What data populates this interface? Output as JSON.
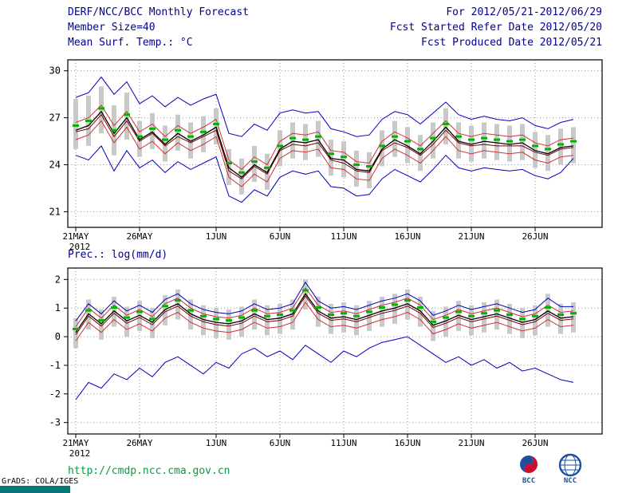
{
  "header": {
    "title": "DERF/NCC/BCC Monthly Forecast",
    "member_size": "Member Size=40",
    "for_range": "For 2012/05/21-2012/06/29",
    "refer_date": "Fcst Started Refer Date 2012/05/20",
    "produced_date": "Fcst Produced Date 2012/05/21"
  },
  "footer": {
    "url": "http://cmdp.ncc.cma.gov.cn",
    "grads_credit": "GrADS: COLA/IGES",
    "logos": [
      "BCC",
      "NCC"
    ]
  },
  "colors": {
    "header_text": "#00008b",
    "envelope_line": "#0000bb",
    "quartile_line": "#cc3333",
    "control_line": "#7a0000",
    "mean_line": "#000000",
    "median_marker": "#00b400",
    "spread_bar": "#c9c9c9",
    "url_text": "#00a040",
    "signature_bar": "#007a7a"
  },
  "chart_data": [
    {
      "type": "line",
      "title": "Mean Surf. Temp.: °C",
      "xlabel": "",
      "ylabel": "°C",
      "ylim": [
        20.0,
        30.7
      ],
      "yticks": [
        21,
        24,
        27,
        30
      ],
      "ytick_labels": [
        "21",
        "24",
        "27",
        "30"
      ],
      "x_days": 40,
      "xtick_labels": [
        "21MAY",
        "26MAY",
        "1JUN",
        "6JUN",
        "11JUN",
        "16JUN",
        "21JUN",
        "26JUN"
      ],
      "xtick_day_index": [
        0,
        5,
        11,
        16,
        21,
        26,
        31,
        36
      ],
      "year_label": "2012",
      "grid": true,
      "series": [
        {
          "name": "min",
          "color": "#0000bb",
          "width": 1,
          "values": [
            24.6,
            24.3,
            25.2,
            23.6,
            24.9,
            23.8,
            24.3,
            23.5,
            24.2,
            23.7,
            24.1,
            24.5,
            22.0,
            21.6,
            22.4,
            22.0,
            23.2,
            23.6,
            23.4,
            23.6,
            22.6,
            22.5,
            22.0,
            22.1,
            23.1,
            23.7,
            23.3,
            22.9,
            23.7,
            24.6,
            23.8,
            23.6,
            23.8,
            23.7,
            23.6,
            23.7,
            23.3,
            23.1,
            23.5,
            24.4
          ]
        },
        {
          "name": "max",
          "color": "#0000bb",
          "width": 1,
          "values": [
            28.3,
            28.6,
            29.6,
            28.5,
            29.3,
            27.9,
            28.4,
            27.7,
            28.3,
            27.8,
            28.2,
            28.5,
            26.0,
            25.8,
            26.6,
            26.2,
            27.3,
            27.5,
            27.3,
            27.4,
            26.3,
            26.1,
            25.8,
            25.9,
            26.9,
            27.4,
            27.2,
            26.6,
            27.3,
            28.0,
            27.2,
            26.9,
            27.1,
            26.9,
            26.8,
            27.0,
            26.5,
            26.3,
            26.7,
            26.9
          ]
        },
        {
          "name": "lower-quartile",
          "color": "#cc3333",
          "width": 1,
          "values": [
            25.6,
            25.9,
            26.8,
            25.4,
            26.4,
            25.0,
            25.5,
            24.7,
            25.4,
            24.9,
            25.3,
            25.8,
            23.2,
            22.6,
            23.4,
            22.9,
            24.4,
            24.9,
            24.8,
            25.0,
            23.8,
            23.7,
            23.1,
            23.0,
            24.4,
            25.0,
            24.6,
            24.1,
            24.9,
            25.8,
            24.9,
            24.7,
            24.9,
            24.8,
            24.7,
            24.8,
            24.3,
            24.1,
            24.5,
            24.6
          ]
        },
        {
          "name": "upper-quartile",
          "color": "#cc3333",
          "width": 1,
          "values": [
            26.7,
            27.0,
            27.8,
            26.5,
            27.4,
            26.1,
            26.6,
            25.8,
            26.5,
            26.0,
            26.4,
            26.9,
            24.3,
            23.7,
            24.5,
            24.0,
            25.5,
            26.0,
            25.9,
            26.1,
            24.9,
            24.8,
            24.2,
            24.1,
            25.5,
            26.1,
            25.7,
            25.2,
            26.0,
            26.8,
            26.0,
            25.8,
            26.0,
            25.9,
            25.8,
            25.9,
            25.4,
            25.2,
            25.6,
            25.7
          ]
        },
        {
          "name": "control",
          "color": "#7a0000",
          "width": 1,
          "values": [
            26.1,
            26.3,
            27.2,
            25.8,
            26.8,
            25.5,
            26.0,
            25.2,
            25.8,
            25.4,
            25.8,
            26.2,
            23.6,
            23.1,
            23.9,
            23.4,
            24.9,
            25.3,
            25.2,
            25.4,
            24.3,
            24.1,
            23.6,
            23.5,
            24.9,
            25.4,
            25.1,
            24.6,
            25.3,
            26.2,
            25.4,
            25.2,
            25.3,
            25.2,
            25.2,
            25.2,
            24.8,
            24.6,
            25.0,
            25.1
          ]
        },
        {
          "name": "ensemble-mean",
          "color": "#000000",
          "width": 1.3,
          "values": [
            26.2,
            26.5,
            27.4,
            26.0,
            27.0,
            25.6,
            26.1,
            25.3,
            26.0,
            25.5,
            25.9,
            26.4,
            23.8,
            23.2,
            24.0,
            23.5,
            25.0,
            25.5,
            25.4,
            25.6,
            24.4,
            24.3,
            23.7,
            23.6,
            25.0,
            25.6,
            25.2,
            24.7,
            25.5,
            26.4,
            25.5,
            25.3,
            25.5,
            25.4,
            25.3,
            25.4,
            24.9,
            24.7,
            25.1,
            25.2
          ]
        }
      ],
      "median_markers": {
        "color": "#00b400",
        "values": [
          26.5,
          26.8,
          27.6,
          26.2,
          27.2,
          25.8,
          26.3,
          25.6,
          26.2,
          25.8,
          26.1,
          26.6,
          24.1,
          23.5,
          24.2,
          23.8,
          25.2,
          25.7,
          25.6,
          25.8,
          24.7,
          24.5,
          24.0,
          23.9,
          25.2,
          25.8,
          25.5,
          25.0,
          25.7,
          26.6,
          25.8,
          25.6,
          25.7,
          25.6,
          25.5,
          25.6,
          25.2,
          25.0,
          25.3,
          25.5
        ]
      },
      "spread_bars": {
        "color": "#c9c9c9",
        "low": [
          25.0,
          25.2,
          26.0,
          24.6,
          25.6,
          24.5,
          25.0,
          24.2,
          24.9,
          24.4,
          24.8,
          25.3,
          22.7,
          22.1,
          22.9,
          22.4,
          23.9,
          24.4,
          24.3,
          24.5,
          23.3,
          23.2,
          22.6,
          22.5,
          23.9,
          24.5,
          24.1,
          23.6,
          24.4,
          25.3,
          24.4,
          24.2,
          24.4,
          24.3,
          24.2,
          24.3,
          23.8,
          23.6,
          24.0,
          24.1
        ],
        "high": [
          28.2,
          28.4,
          29.0,
          27.8,
          28.6,
          26.8,
          27.3,
          26.5,
          27.2,
          26.7,
          27.1,
          27.6,
          25.0,
          24.4,
          25.2,
          24.7,
          26.2,
          26.7,
          26.6,
          26.8,
          25.6,
          25.5,
          24.9,
          24.8,
          26.2,
          26.8,
          26.4,
          25.9,
          26.7,
          27.6,
          26.7,
          26.5,
          26.7,
          26.6,
          26.5,
          26.6,
          26.1,
          25.9,
          26.3,
          26.4
        ]
      }
    },
    {
      "type": "line",
      "title": "Prec.: log(mm/d)",
      "xlabel": "",
      "ylabel": "log(mm/d)",
      "ylim": [
        -3.4,
        2.4
      ],
      "yticks": [
        -3,
        -2,
        -1,
        0,
        1,
        2
      ],
      "ytick_labels": [
        "-3",
        "-2",
        "-1",
        "0",
        "1",
        "2"
      ],
      "x_days": 40,
      "xtick_labels": [
        "21MAY",
        "26MAY",
        "1JUN",
        "6JUN",
        "11JUN",
        "16JUN",
        "21JUN",
        "26JUN"
      ],
      "xtick_day_index": [
        0,
        5,
        11,
        16,
        21,
        26,
        31,
        36
      ],
      "year_label": "2012",
      "grid": true,
      "series": [
        {
          "name": "min",
          "color": "#0000bb",
          "width": 1,
          "values": [
            -2.2,
            -1.6,
            -1.8,
            -1.3,
            -1.5,
            -1.1,
            -1.4,
            -0.9,
            -0.7,
            -1.0,
            -1.3,
            -0.9,
            -1.1,
            -0.6,
            -0.4,
            -0.7,
            -0.5,
            -0.8,
            -0.3,
            -0.6,
            -0.9,
            -0.5,
            -0.7,
            -0.4,
            -0.2,
            -0.1,
            0.0,
            -0.3,
            -0.6,
            -0.9,
            -0.7,
            -1.0,
            -0.8,
            -1.1,
            -0.9,
            -1.2,
            -1.1,
            -1.3,
            -1.5,
            -1.6
          ]
        },
        {
          "name": "max",
          "color": "#0000bb",
          "width": 1,
          "values": [
            0.55,
            1.15,
            0.8,
            1.25,
            0.9,
            1.1,
            0.85,
            1.3,
            1.5,
            1.15,
            0.95,
            0.85,
            0.8,
            0.9,
            1.15,
            0.95,
            1.0,
            1.15,
            1.9,
            1.25,
            1.0,
            1.05,
            0.95,
            1.1,
            1.25,
            1.35,
            1.5,
            1.25,
            0.75,
            0.9,
            1.1,
            0.95,
            1.05,
            1.15,
            1.0,
            0.85,
            0.95,
            1.35,
            1.05,
            1.05
          ]
        },
        {
          "name": "lower-quartile",
          "color": "#cc3333",
          "width": 1,
          "values": [
            -0.15,
            0.5,
            0.15,
            0.6,
            0.25,
            0.45,
            0.2,
            0.65,
            0.85,
            0.5,
            0.3,
            0.2,
            0.15,
            0.25,
            0.5,
            0.3,
            0.35,
            0.5,
            1.2,
            0.6,
            0.35,
            0.4,
            0.3,
            0.45,
            0.6,
            0.7,
            0.85,
            0.6,
            0.1,
            0.25,
            0.45,
            0.3,
            0.4,
            0.5,
            0.35,
            0.2,
            0.3,
            0.6,
            0.35,
            0.4
          ]
        },
        {
          "name": "upper-quartile",
          "color": "#cc3333",
          "width": 1,
          "values": [
            0.35,
            1.0,
            0.65,
            1.1,
            0.75,
            0.95,
            0.7,
            1.15,
            1.35,
            1.0,
            0.8,
            0.7,
            0.65,
            0.75,
            1.0,
            0.8,
            0.85,
            1.0,
            1.7,
            1.1,
            0.85,
            0.9,
            0.8,
            0.95,
            1.1,
            1.2,
            1.35,
            1.1,
            0.6,
            0.75,
            0.95,
            0.8,
            0.9,
            1.0,
            0.85,
            0.7,
            0.8,
            1.1,
            0.85,
            0.9
          ]
        },
        {
          "name": "control",
          "color": "#7a0000",
          "width": 1,
          "values": [
            0.07,
            0.72,
            0.37,
            0.82,
            0.47,
            0.67,
            0.42,
            0.87,
            1.07,
            0.72,
            0.52,
            0.42,
            0.37,
            0.47,
            0.72,
            0.52,
            0.57,
            0.72,
            1.42,
            0.82,
            0.57,
            0.62,
            0.52,
            0.67,
            0.82,
            0.92,
            1.07,
            0.82,
            0.32,
            0.47,
            0.67,
            0.52,
            0.62,
            0.72,
            0.57,
            0.42,
            0.52,
            0.82,
            0.57,
            0.62
          ]
        },
        {
          "name": "ensemble-mean",
          "color": "#000000",
          "width": 1.3,
          "values": [
            0.15,
            0.8,
            0.45,
            0.9,
            0.55,
            0.75,
            0.5,
            0.95,
            1.15,
            0.8,
            0.6,
            0.5,
            0.45,
            0.55,
            0.8,
            0.6,
            0.65,
            0.8,
            1.5,
            0.9,
            0.65,
            0.7,
            0.6,
            0.75,
            0.9,
            1.0,
            1.15,
            0.9,
            0.4,
            0.55,
            0.75,
            0.6,
            0.7,
            0.8,
            0.65,
            0.5,
            0.6,
            0.9,
            0.65,
            0.7
          ]
        }
      ],
      "median_markers": {
        "color": "#00b400",
        "values": [
          0.27,
          0.92,
          0.57,
          1.02,
          0.67,
          0.87,
          0.62,
          1.07,
          1.27,
          0.92,
          0.72,
          0.62,
          0.57,
          0.67,
          0.92,
          0.72,
          0.77,
          0.92,
          1.62,
          1.02,
          0.77,
          0.82,
          0.72,
          0.87,
          1.02,
          1.12,
          1.27,
          1.02,
          0.52,
          0.67,
          0.87,
          0.72,
          0.82,
          0.92,
          0.77,
          0.62,
          0.72,
          1.02,
          0.77,
          0.82
        ]
      },
      "spread_bars": {
        "color": "#c9c9c9",
        "low": [
          -0.4,
          0.25,
          -0.1,
          0.35,
          0.0,
          0.2,
          -0.05,
          0.4,
          0.6,
          0.25,
          0.05,
          -0.05,
          -0.1,
          0.0,
          0.25,
          0.05,
          0.1,
          0.25,
          0.95,
          0.35,
          0.1,
          0.15,
          0.05,
          0.2,
          0.35,
          0.45,
          0.6,
          0.35,
          -0.15,
          0.0,
          0.2,
          0.05,
          0.15,
          0.25,
          0.1,
          -0.05,
          0.05,
          0.35,
          0.1,
          0.15
        ],
        "high": [
          0.65,
          1.3,
          0.95,
          1.4,
          1.05,
          1.25,
          1.0,
          1.45,
          1.65,
          1.3,
          1.1,
          1.0,
          0.95,
          1.05,
          1.3,
          1.1,
          1.15,
          1.3,
          2.0,
          1.4,
          1.15,
          1.2,
          1.1,
          1.25,
          1.4,
          1.5,
          1.65,
          1.4,
          0.9,
          1.05,
          1.25,
          1.1,
          1.2,
          1.3,
          1.15,
          1.0,
          1.1,
          1.5,
          1.15,
          1.2
        ]
      }
    }
  ]
}
